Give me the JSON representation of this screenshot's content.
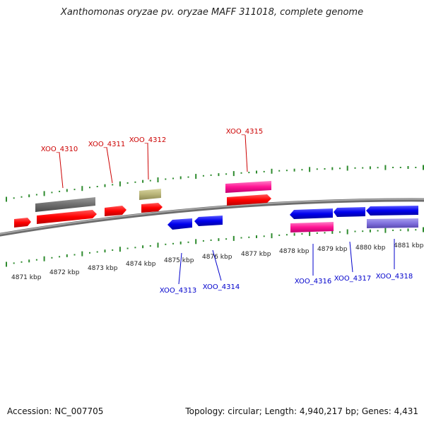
{
  "title": "Xanthomonas oryzae pv. oryzae MAFF 311018, complete genome",
  "footer": {
    "accession_label": "Accession:",
    "accession": "NC_007705",
    "topology_label": "Topology:",
    "topology": "circular",
    "length_label": "Length:",
    "length": "4,940,217 bp",
    "genes_label": "Genes:",
    "genes": "4,431"
  },
  "scale": {
    "unit": "kbp",
    "ticks": [
      "4871 kbp",
      "4872 kbp",
      "4873 kbp",
      "4874 kbp",
      "4875 kbp",
      "4876 kbp",
      "4877 kbp",
      "4878 kbp",
      "4879 kbp",
      "4880 kbp",
      "4881 kbp"
    ]
  },
  "colors": {
    "forward_label": "#cc0000",
    "reverse_label": "#0000cc",
    "tick": "#2e8b2e",
    "backbone": "#888888"
  },
  "forward_genes": [
    "XOO_4310",
    "XOO_4311",
    "XOO_4312",
    "XOO_4315"
  ],
  "reverse_genes": [
    "XOO_4313",
    "XOO_4314",
    "XOO_4316",
    "XOO_4317",
    "XOO_4318"
  ]
}
